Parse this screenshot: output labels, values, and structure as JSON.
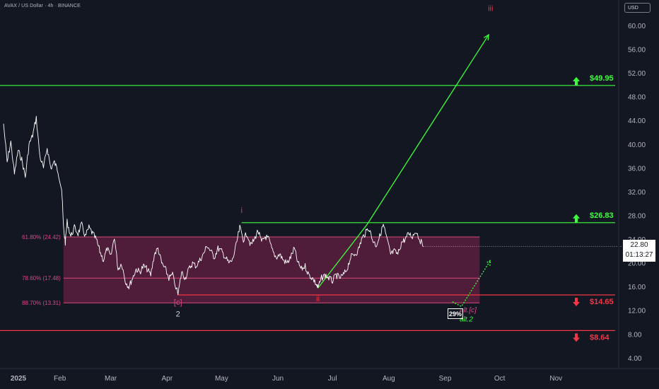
{
  "header": {
    "symbol_title": "AVAX / US Dollar · 4h · BINANCE",
    "currency_button": "USD"
  },
  "price_box": {
    "price": "22.80",
    "countdown": "01:13:27"
  },
  "probability_badge": "29%",
  "colors": {
    "background": "#131722",
    "price_line": "#ffffff",
    "green": "#4caf50",
    "bright_green": "#3cff3c",
    "red": "#f23645",
    "zone_fill": "#5a1f3d",
    "fib_text": "#e0468a"
  },
  "chart_data": {
    "type": "line",
    "title": "AVAX / US Dollar · 4h · BINANCE",
    "y_axis": {
      "ylim": [
        1.5,
        64
      ],
      "ticks": [
        "60.00",
        "56.00",
        "52.00",
        "48.00",
        "44.00",
        "40.00",
        "36.00",
        "32.00",
        "28.00",
        "24.00",
        "20.00",
        "16.00",
        "12.00",
        "8.00",
        "4.00"
      ],
      "position": "right"
    },
    "x_axis": {
      "ticks": [
        "2025",
        "Feb",
        "Mar",
        "Apr",
        "May",
        "Jun",
        "Jul",
        "Aug",
        "Sep",
        "Oct",
        "Nov"
      ]
    },
    "grid": false,
    "series": [
      {
        "points": [
          [
            "2025-01-01",
            43.5
          ],
          [
            "2025-01-03",
            37
          ],
          [
            "2025-01-05",
            40.5
          ],
          [
            "2025-01-07",
            35
          ],
          [
            "2025-01-09",
            39
          ],
          [
            "2025-01-11",
            37.5
          ],
          [
            "2025-01-13",
            34.5
          ],
          [
            "2025-01-15",
            40
          ],
          [
            "2025-01-17",
            41.5
          ],
          [
            "2025-01-19",
            44.5
          ],
          [
            "2025-01-21",
            38
          ],
          [
            "2025-01-23",
            36
          ],
          [
            "2025-01-25",
            39.5
          ],
          [
            "2025-01-27",
            36
          ],
          [
            "2025-01-29",
            37
          ],
          [
            "2025-01-31",
            35.5
          ],
          [
            "2025-02-02",
            32.5
          ],
          [
            "2025-02-03",
            26
          ],
          [
            "2025-02-04",
            23.5
          ],
          [
            "2025-02-05",
            27
          ],
          [
            "2025-02-07",
            24.5
          ],
          [
            "2025-02-09",
            26
          ],
          [
            "2025-02-11",
            25
          ],
          [
            "2025-02-13",
            26.5
          ],
          [
            "2025-02-15",
            24.5
          ],
          [
            "2025-02-17",
            26
          ],
          [
            "2025-02-19",
            25
          ],
          [
            "2025-02-21",
            24
          ],
          [
            "2025-02-23",
            22
          ],
          [
            "2025-02-25",
            20.5
          ],
          [
            "2025-02-27",
            22.5
          ],
          [
            "2025-03-01",
            21
          ],
          [
            "2025-03-03",
            24.5
          ],
          [
            "2025-03-05",
            19
          ],
          [
            "2025-03-07",
            20
          ],
          [
            "2025-03-09",
            17
          ],
          [
            "2025-03-11",
            16
          ],
          [
            "2025-03-13",
            17.5
          ],
          [
            "2025-03-15",
            19
          ],
          [
            "2025-03-17",
            18.5
          ],
          [
            "2025-03-19",
            19.5
          ],
          [
            "2025-03-21",
            19
          ],
          [
            "2025-03-23",
            18
          ],
          [
            "2025-03-25",
            21.5
          ],
          [
            "2025-03-27",
            22.5
          ],
          [
            "2025-03-29",
            20
          ],
          [
            "2025-03-31",
            19
          ],
          [
            "2025-04-02",
            17.5
          ],
          [
            "2025-04-04",
            18
          ],
          [
            "2025-04-07",
            14.7
          ],
          [
            "2025-04-09",
            18.5
          ],
          [
            "2025-04-11",
            17.5
          ],
          [
            "2025-04-13",
            19
          ],
          [
            "2025-04-15",
            20
          ],
          [
            "2025-04-17",
            19.5
          ],
          [
            "2025-04-19",
            20.5
          ],
          [
            "2025-04-21",
            21.5
          ],
          [
            "2025-04-23",
            23
          ],
          [
            "2025-04-25",
            22
          ],
          [
            "2025-04-27",
            21
          ],
          [
            "2025-04-29",
            22.5
          ],
          [
            "2025-05-01",
            22
          ],
          [
            "2025-05-03",
            21
          ],
          [
            "2025-05-05",
            20
          ],
          [
            "2025-05-07",
            20.5
          ],
          [
            "2025-05-09",
            23
          ],
          [
            "2025-05-11",
            26
          ],
          [
            "2025-05-13",
            24
          ],
          [
            "2025-05-15",
            25
          ],
          [
            "2025-05-17",
            23
          ],
          [
            "2025-05-19",
            24
          ],
          [
            "2025-05-21",
            25.5
          ],
          [
            "2025-05-23",
            23.5
          ],
          [
            "2025-05-25",
            24.5
          ],
          [
            "2025-05-27",
            24
          ],
          [
            "2025-05-29",
            22
          ],
          [
            "2025-05-31",
            21
          ],
          [
            "2025-06-02",
            21.5
          ],
          [
            "2025-06-04",
            20.5
          ],
          [
            "2025-06-06",
            20
          ],
          [
            "2025-06-08",
            21
          ],
          [
            "2025-06-10",
            22.5
          ],
          [
            "2025-06-12",
            20
          ],
          [
            "2025-06-14",
            19
          ],
          [
            "2025-06-16",
            19.5
          ],
          [
            "2025-06-18",
            18
          ],
          [
            "2025-06-20",
            17.5
          ],
          [
            "2025-06-22",
            16.5
          ],
          [
            "2025-06-23",
            15.8
          ],
          [
            "2025-06-25",
            17.5
          ],
          [
            "2025-06-27",
            18
          ],
          [
            "2025-06-29",
            17.5
          ],
          [
            "2025-07-01",
            17
          ],
          [
            "2025-07-03",
            18
          ],
          [
            "2025-07-05",
            17.5
          ],
          [
            "2025-07-07",
            18
          ],
          [
            "2025-07-09",
            19
          ],
          [
            "2025-07-11",
            21
          ],
          [
            "2025-07-13",
            21.5
          ],
          [
            "2025-07-15",
            22
          ],
          [
            "2025-07-17",
            24
          ],
          [
            "2025-07-19",
            25
          ],
          [
            "2025-07-21",
            26
          ],
          [
            "2025-07-23",
            24
          ],
          [
            "2025-07-25",
            23
          ],
          [
            "2025-07-27",
            24.5
          ],
          [
            "2025-07-29",
            26.5
          ],
          [
            "2025-07-31",
            24
          ],
          [
            "2025-08-02",
            21.5
          ],
          [
            "2025-08-04",
            22
          ],
          [
            "2025-08-06",
            21.5
          ],
          [
            "2025-08-08",
            23.5
          ],
          [
            "2025-08-10",
            24
          ],
          [
            "2025-08-12",
            25
          ],
          [
            "2025-08-14",
            24.5
          ],
          [
            "2025-08-16",
            25.5
          ],
          [
            "2025-08-18",
            24
          ],
          [
            "2025-08-20",
            22.8
          ]
        ]
      }
    ],
    "fib_zone": {
      "top": 24.42,
      "bottom": 13.31,
      "from": "2025-02-03",
      "to": "2025-09-20"
    },
    "fib_levels": [
      {
        "label": "61.80% (24.42)",
        "value": 24.42
      },
      {
        "label": "78.60% (17.48)",
        "value": 17.48
      },
      {
        "label": "88.70% (13.31)",
        "value": 13.31
      }
    ],
    "levels": [
      {
        "label": "$49.95",
        "value": 49.95,
        "color": "green",
        "direction": "up"
      },
      {
        "label": "$26.83",
        "value": 26.83,
        "color": "green",
        "direction": "up"
      },
      {
        "label": "$14.65",
        "value": 14.65,
        "color": "red",
        "direction": "down"
      },
      {
        "label": "$8.64",
        "value": 8.64,
        "color": "red",
        "direction": "down"
      }
    ],
    "projections": [
      {
        "style": "solid",
        "points": [
          [
            "2025-06-23",
            15.8
          ],
          [
            "2025-07-20",
            26.5
          ],
          [
            "2025-09-25",
            58.5
          ]
        ]
      },
      {
        "style": "dotted",
        "points": [
          [
            "2025-09-05",
            13.5
          ],
          [
            "2025-09-10",
            12.7
          ],
          [
            "2025-09-26",
            20.5
          ]
        ]
      }
    ],
    "wave_labels": [
      {
        "text": "i",
        "x": "2025-05-12",
        "y": 28.5,
        "color": "red"
      },
      {
        "text": "ii",
        "x": "2025-06-23",
        "y": 13.6,
        "color": "red"
      },
      {
        "text": "iii",
        "x": "2025-09-26",
        "y": 62.5,
        "color": "red"
      },
      {
        "text": "[c]",
        "x": "2025-04-07",
        "y": 13.0,
        "color": "pink"
      },
      {
        "text": "2",
        "x": "2025-04-07",
        "y": 11.0,
        "color": "white"
      },
      {
        "text": "alt.[c]",
        "x": "2025-09-09",
        "y": 11.7,
        "color": "pink"
      },
      {
        "text": "alt.2",
        "x": "2025-09-09",
        "y": 10.2,
        "color": "green"
      }
    ]
  }
}
